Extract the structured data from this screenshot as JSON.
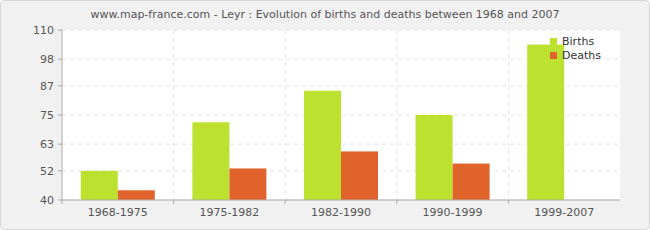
{
  "chart_data": {
    "type": "bar",
    "title": "www.map-france.com - Leyr : Evolution of births and deaths between 1968 and 2007",
    "categories": [
      "1968-1975",
      "1975-1982",
      "1982-1990",
      "1990-1999",
      "1999-2007"
    ],
    "series": [
      {
        "name": "Births",
        "color": "#bce12f",
        "values": [
          52,
          72,
          85,
          75,
          104
        ]
      },
      {
        "name": "Deaths",
        "color": "#e0632b",
        "values": [
          44,
          53,
          60,
          55,
          40
        ]
      }
    ],
    "ylim": [
      40,
      110
    ],
    "yticks": [
      40,
      52,
      63,
      75,
      87,
      98,
      110
    ],
    "grid": true,
    "legend": "top-right"
  }
}
